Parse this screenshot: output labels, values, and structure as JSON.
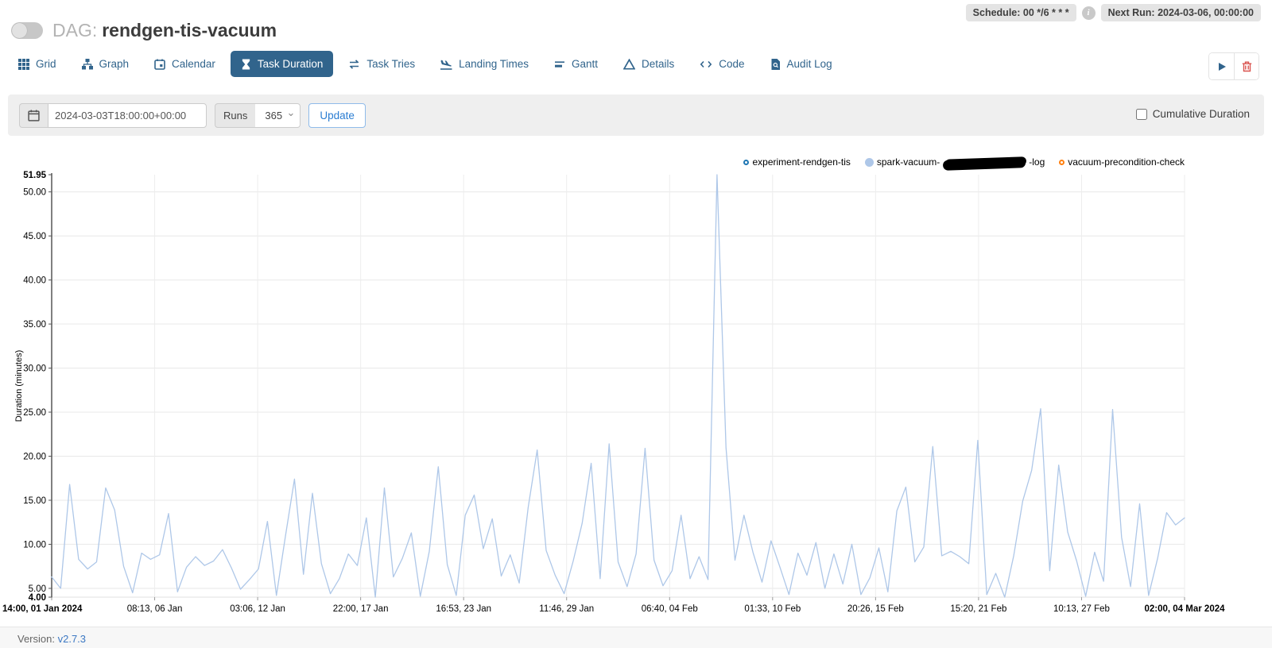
{
  "header": {
    "dag_label": "DAG:",
    "dag_name": "rendgen-tis-vacuum",
    "schedule_badge": "Schedule: 00 */6 * * *",
    "info_glyph": "i",
    "next_run_badge": "Next Run: 2024-03-06, 00:00:00"
  },
  "tabs": [
    {
      "label": "Grid",
      "active": false
    },
    {
      "label": "Graph",
      "active": false
    },
    {
      "label": "Calendar",
      "active": false
    },
    {
      "label": "Task Duration",
      "active": true
    },
    {
      "label": "Task Tries",
      "active": false
    },
    {
      "label": "Landing Times",
      "active": false
    },
    {
      "label": "Gantt",
      "active": false
    },
    {
      "label": "Details",
      "active": false
    },
    {
      "label": "Code",
      "active": false
    },
    {
      "label": "Audit Log",
      "active": false
    }
  ],
  "filter": {
    "date_value": "2024-03-03T18:00:00+00:00",
    "runs_label": "Runs",
    "runs_value": "365",
    "update_label": "Update",
    "cumulative_label": "Cumulative Duration"
  },
  "legend": [
    {
      "label": "experiment-rendgen-tis",
      "marker": "hollow",
      "color": "#1f77b4"
    },
    {
      "label_prefix": "spark-vacuum-",
      "label_suffix": "-log",
      "redacted": true,
      "marker": "filled",
      "color": "#aec7e8"
    },
    {
      "label": "vacuum-precondition-check",
      "marker": "hollow",
      "color": "#ff7f0e"
    }
  ],
  "chart_data": {
    "type": "line",
    "title": "",
    "xlabel": "",
    "ylabel": "Duration (minutes)",
    "ylim": [
      4,
      51.95
    ],
    "grid": true,
    "legend_position": "top-right",
    "line_color": "#aec7e8",
    "y_ticks": [
      {
        "label": "51.95",
        "v": 51.95,
        "bold": true,
        "grid": false
      },
      {
        "label": "50.00",
        "v": 50,
        "bold": false,
        "grid": true
      },
      {
        "label": "45.00",
        "v": 45,
        "bold": false,
        "grid": true
      },
      {
        "label": "40.00",
        "v": 40,
        "bold": false,
        "grid": true
      },
      {
        "label": "35.00",
        "v": 35,
        "bold": false,
        "grid": true
      },
      {
        "label": "30.00",
        "v": 30,
        "bold": false,
        "grid": true
      },
      {
        "label": "25.00",
        "v": 25,
        "bold": false,
        "grid": true
      },
      {
        "label": "20.00",
        "v": 20,
        "bold": false,
        "grid": true
      },
      {
        "label": "15.00",
        "v": 15,
        "bold": false,
        "grid": true
      },
      {
        "label": "10.00",
        "v": 10,
        "bold": false,
        "grid": true
      },
      {
        "label": "5.00",
        "v": 5,
        "bold": false,
        "grid": true
      },
      {
        "label": "4.00",
        "v": 4,
        "bold": true,
        "grid": false
      }
    ],
    "x_ticks": [
      {
        "label": "14:00, 01 Jan 2024",
        "bold": true
      },
      {
        "label": "08:13, 06 Jan",
        "bold": false
      },
      {
        "label": "03:06, 12 Jan",
        "bold": false
      },
      {
        "label": "22:00, 17 Jan",
        "bold": false
      },
      {
        "label": "16:53, 23 Jan",
        "bold": false
      },
      {
        "label": "11:46, 29 Jan",
        "bold": false
      },
      {
        "label": "06:40, 04 Feb",
        "bold": false
      },
      {
        "label": "01:33, 10 Feb",
        "bold": false
      },
      {
        "label": "20:26, 15 Feb",
        "bold": false
      },
      {
        "label": "15:20, 21 Feb",
        "bold": false
      },
      {
        "label": "10:13, 27 Feb",
        "bold": false
      },
      {
        "label": "02:00, 04 Mar 2024",
        "bold": true
      }
    ],
    "series": [
      {
        "name": "spark-vacuum-(redacted)-log",
        "color": "#aec7e8",
        "values": [
          6.3,
          5.0,
          16.8,
          8.3,
          7.2,
          8.0,
          16.4,
          13.9,
          7.5,
          4.5,
          9.0,
          8.3,
          8.8,
          13.5,
          4.6,
          7.4,
          8.6,
          7.6,
          8.1,
          9.4,
          7.3,
          4.9,
          6.0,
          7.2,
          12.6,
          4.2,
          10.9,
          17.4,
          6.6,
          15.8,
          7.8,
          4.4,
          6.1,
          8.9,
          7.6,
          13.0,
          4.0,
          16.4,
          6.3,
          8.4,
          11.3,
          4.1,
          9.2,
          18.8,
          7.7,
          4.2,
          13.3,
          15.6,
          9.5,
          12.9,
          6.4,
          8.8,
          5.6,
          14.2,
          20.7,
          9.3,
          6.5,
          4.4,
          8.1,
          12.4,
          19.2,
          6.1,
          21.4,
          8.0,
          5.2,
          8.9,
          20.9,
          8.2,
          5.3,
          7.0,
          13.3,
          6.1,
          8.6,
          6.0,
          51.95,
          21.0,
          8.2,
          13.3,
          9.1,
          5.7,
          10.4,
          7.4,
          4.3,
          9.0,
          6.5,
          10.2,
          5.0,
          8.9,
          5.5,
          10.0,
          4.3,
          6.2,
          9.6,
          4.6,
          13.8,
          16.5,
          8.0,
          9.7,
          21.1,
          8.7,
          9.2,
          8.6,
          7.8,
          21.8,
          4.3,
          6.7,
          4.0,
          8.7,
          14.9,
          18.4,
          25.4,
          7.0,
          19.0,
          11.4,
          8.1,
          4.1,
          9.1,
          5.8,
          25.3,
          10.8,
          5.2,
          14.6,
          4.2,
          8.4,
          13.6,
          12.2,
          13.0
        ]
      }
    ]
  },
  "footer": {
    "version_label": "Version:",
    "version_value": "v2.7.3"
  }
}
